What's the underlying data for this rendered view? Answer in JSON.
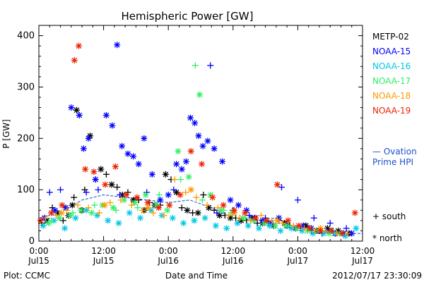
{
  "chart_data": {
    "type": "scatter",
    "title": "Hemispheric Power [GW]",
    "ylabel": "P [GW]",
    "xlabel": "Date and Time",
    "ylim": [
      0,
      420
    ],
    "xlim_hours": [
      0,
      60
    ],
    "y_ticks": [
      "0",
      "100",
      "200",
      "300",
      "400"
    ],
    "x_ticks": [
      {
        "time": "0:00",
        "date": "Jul15"
      },
      {
        "time": "12:00",
        "date": "Jul15"
      },
      {
        "time": "0:00",
        "date": "Jul16"
      },
      {
        "time": "12:00",
        "date": "Jul16"
      },
      {
        "time": "0:00",
        "date": "Jul17"
      },
      {
        "time": "12:00",
        "date": "Jul17"
      }
    ],
    "legend": {
      "placement": "right",
      "ovation_label": "— Ovation\nPrime HPI",
      "ovation_line1": "— Ovation",
      "ovation_line2": "Prime HPI",
      "south_label": "+ south",
      "north_label": "* north"
    },
    "series": [
      {
        "name": "METP-02",
        "color": "#000000",
        "symbol": "+",
        "x": [
          0.5,
          2.5,
          4.5,
          6.5,
          8.5,
          10.5,
          12.5,
          14.5,
          16.5,
          18.5,
          20.5,
          22.5,
          24.5,
          26.5,
          28.5,
          30.5,
          32.5,
          34.5,
          36.5,
          38.5,
          40.5,
          42.5,
          44.5,
          46.5,
          48.5,
          50.5,
          52.5,
          54.5,
          56.5
        ],
        "y": [
          35,
          65,
          40,
          85,
          100,
          120,
          130,
          105,
          95,
          80,
          75,
          70,
          120,
          65,
          55,
          90,
          60,
          50,
          45,
          40,
          35,
          35,
          40,
          30,
          25,
          20,
          15,
          20,
          15
        ]
      },
      {
        "name": "METP-02",
        "color": "#000000",
        "symbol": "*",
        "x": [
          1.5,
          3.5,
          5.5,
          6.2,
          7.0,
          8.0,
          9.5,
          11.5,
          13.5,
          15.5,
          17.5,
          19.5,
          21.5,
          23.5,
          25.5,
          27.5,
          29.5,
          31.5,
          33.5,
          35.5,
          37.5,
          39.5,
          41.5,
          43.5,
          45.5,
          47.5,
          49.5,
          51.5,
          53.5,
          55.5,
          57.5
        ],
        "y": [
          40,
          55,
          50,
          70,
          255,
          60,
          205,
          140,
          110,
          90,
          80,
          60,
          70,
          130,
          95,
          60,
          55,
          65,
          50,
          45,
          40,
          45,
          35,
          30,
          35,
          25,
          30,
          20,
          25,
          20,
          15
        ]
      },
      {
        "name": "NOAA-15",
        "color": "#0000ff",
        "symbol": "*",
        "x": [
          1.0,
          3.0,
          5.0,
          6.0,
          7.5,
          8.3,
          9.2,
          10.5,
          12.5,
          13.6,
          14.5,
          15.4,
          16.5,
          17.5,
          18.5,
          19.5,
          21.0,
          22.5,
          24.0,
          25.5,
          26.5,
          27.3,
          28.1,
          28.9,
          29.6,
          30.4,
          31.3,
          32.5,
          34.0,
          35.5,
          37.0,
          38.5,
          40.0,
          41.5,
          43.0,
          44.5,
          46.0,
          47.5,
          49.0,
          50.5,
          52.0,
          53.5,
          55.0,
          56.5,
          58.0
        ],
        "y": [
          45,
          60,
          65,
          260,
          245,
          180,
          200,
          120,
          245,
          225,
          382,
          185,
          170,
          165,
          150,
          200,
          130,
          80,
          90,
          150,
          140,
          155,
          240,
          230,
          205,
          185,
          195,
          180,
          155,
          80,
          70,
          60,
          45,
          40,
          35,
          45,
          30,
          25,
          30,
          25,
          20,
          20,
          15,
          15,
          15
        ]
      },
      {
        "name": "NOAA-15",
        "color": "#0000ff",
        "symbol": "+",
        "x": [
          2.0,
          4.0,
          8.8,
          11.0,
          15.0,
          20.0,
          25.0,
          31.8,
          33.0,
          36.0,
          39.0,
          42.0,
          45.0,
          48.0,
          51.0,
          54.0,
          57.0
        ],
        "y": [
          95,
          100,
          95,
          100,
          90,
          95,
          100,
          342,
          55,
          60,
          50,
          45,
          105,
          80,
          45,
          35,
          25
        ]
      },
      {
        "name": "NOAA-16",
        "color": "#00c8e6",
        "symbol": "*",
        "x": [
          0.8,
          2.8,
          4.8,
          6.8,
          8.8,
          10.8,
          12.8,
          14.8,
          16.8,
          18.8,
          20.8,
          22.8,
          24.8,
          26.8,
          28.8,
          30.8,
          32.8,
          34.8,
          36.8,
          38.8,
          40.8,
          42.8,
          44.8,
          46.8,
          48.8,
          50.8,
          52.8,
          54.8,
          56.8,
          58.8
        ],
        "y": [
          30,
          40,
          25,
          45,
          60,
          50,
          40,
          35,
          55,
          45,
          60,
          50,
          45,
          35,
          40,
          45,
          30,
          25,
          35,
          30,
          25,
          30,
          20,
          25,
          20,
          15,
          15,
          15,
          10,
          25
        ]
      },
      {
        "name": "NOAA-17",
        "color": "#33ee66",
        "symbol": "*",
        "x": [
          1.8,
          3.8,
          5.8,
          7.8,
          9.8,
          11.8,
          13.8,
          15.8,
          17.8,
          19.8,
          21.8,
          23.8,
          25.8,
          27.8,
          29.8,
          31.8,
          33.8,
          35.8,
          37.8,
          39.8,
          41.8,
          43.8,
          45.8,
          47.8,
          49.8,
          51.8,
          53.8,
          55.8
        ],
        "y": [
          35,
          45,
          50,
          60,
          55,
          70,
          65,
          80,
          75,
          90,
          70,
          60,
          175,
          125,
          285,
          90,
          60,
          55,
          45,
          40,
          35,
          30,
          30,
          25,
          20,
          20,
          15,
          15
        ]
      },
      {
        "name": "NOAA-17",
        "color": "#33ee66",
        "symbol": "+",
        "x": [
          2.3,
          6.3,
          10.3,
          14.3,
          18.3,
          22.3,
          26.3,
          29.0,
          30.3,
          34.3,
          38.3,
          42.3,
          46.3,
          50.3,
          54.3
        ],
        "y": [
          40,
          55,
          70,
          60,
          65,
          90,
          120,
          342,
          80,
          60,
          45,
          40,
          30,
          25,
          20
        ]
      },
      {
        "name": "NOAA-18",
        "color": "#ff9900",
        "symbol": "+",
        "x": [
          1.2,
          3.2,
          5.2,
          7.2,
          9.2,
          11.2,
          13.2,
          15.2,
          17.2,
          19.2,
          21.2,
          23.2,
          25.2,
          27.2,
          29.2,
          31.2,
          33.2,
          35.2,
          37.2,
          39.2,
          41.2,
          43.2,
          45.2,
          47.2,
          49.2,
          51.2,
          53.2,
          55.2,
          57.2
        ],
        "y": [
          45,
          50,
          60,
          70,
          65,
          55,
          75,
          80,
          70,
          60,
          55,
          50,
          120,
          95,
          85,
          70,
          65,
          50,
          45,
          40,
          50,
          40,
          35,
          30,
          25,
          20,
          20,
          15,
          15
        ]
      },
      {
        "name": "NOAA-18",
        "color": "#ff9900",
        "symbol": "*",
        "x": [
          4.2,
          12.2,
          20.2,
          28.2,
          36.2,
          44.2,
          52.2
        ],
        "y": [
          55,
          70,
          65,
          100,
          55,
          40,
          25
        ]
      },
      {
        "name": "NOAA-19",
        "color": "#ee2200",
        "symbol": "*",
        "x": [
          0.3,
          2.3,
          4.3,
          6.6,
          7.4,
          8.6,
          10.2,
          12.3,
          14.2,
          16.2,
          18.2,
          20.2,
          22.2,
          24.2,
          26.2,
          28.2,
          30.2,
          32.2,
          34.2,
          36.2,
          38.2,
          40.2,
          42.2,
          44.2,
          46.2,
          48.2,
          50.2,
          52.2,
          54.2,
          56.2,
          58.6
        ],
        "y": [
          40,
          55,
          70,
          352,
          380,
          140,
          135,
          110,
          145,
          90,
          85,
          75,
          65,
          70,
          90,
          175,
          150,
          85,
          70,
          60,
          55,
          45,
          40,
          110,
          40,
          30,
          25,
          20,
          20,
          15,
          55
        ]
      }
    ],
    "ovation_hpi": {
      "name": "Ovation Prime HPI",
      "color": "#0055cc",
      "x": [
        0,
        4,
        8,
        12,
        16,
        20,
        24,
        28,
        32,
        36,
        40,
        44,
        48,
        52,
        56,
        60
      ],
      "y": [
        45,
        55,
        80,
        90,
        85,
        80,
        75,
        80,
        65,
        45,
        40,
        45,
        25,
        20,
        15,
        15
      ]
    }
  },
  "footer": {
    "credit": "Plot: CCMC",
    "timestamp": "2012/07/17 23:30:09"
  }
}
